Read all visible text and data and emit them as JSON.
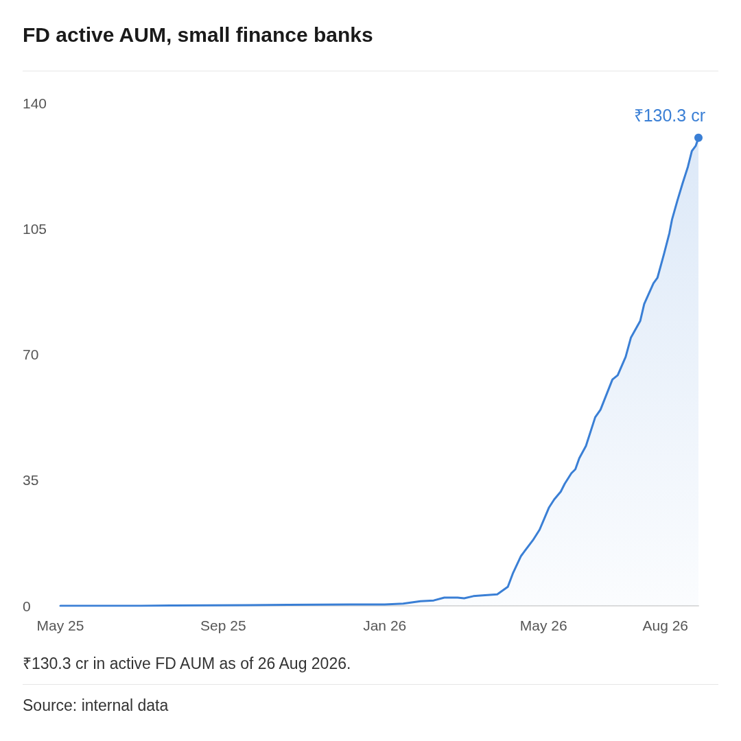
{
  "chart_data": {
    "type": "area",
    "title": "FD active AUM, small finance banks",
    "x": [
      "2025-05-01",
      "2025-07-01",
      "2025-07-23",
      "2025-09-20",
      "2025-10-20",
      "2026-01-01",
      "2026-01-15",
      "2026-01-28",
      "2026-02-07",
      "2026-02-15",
      "2026-02-25",
      "2026-03-02",
      "2026-03-09",
      "2026-03-16",
      "2026-03-27",
      "2026-04-04",
      "2026-04-08",
      "2026-04-14",
      "2026-04-23",
      "2026-04-28",
      "2026-05-05",
      "2026-05-09",
      "2026-05-14",
      "2026-05-17",
      "2026-05-22",
      "2026-05-25",
      "2026-05-28",
      "2026-06-02",
      "2026-06-09",
      "2026-06-13",
      "2026-06-22",
      "2026-06-26",
      "2026-07-02",
      "2026-07-06",
      "2026-07-13",
      "2026-07-16",
      "2026-07-23",
      "2026-07-26",
      "2026-07-31",
      "2026-08-04",
      "2026-08-06",
      "2026-08-10",
      "2026-08-14",
      "2026-08-18",
      "2026-08-21",
      "2026-08-24",
      "2026-08-26"
    ],
    "series": [
      {
        "color": "#3a7fd5",
        "values": [
          0,
          0,
          0.1,
          0.2,
          0.3,
          0.4,
          0.6,
          1.3,
          1.5,
          2.3,
          2.3,
          2.1,
          2.7,
          2.9,
          3.2,
          5.3,
          9.2,
          13.9,
          18.3,
          21.2,
          27.3,
          29.6,
          31.8,
          34,
          36.9,
          38,
          41.1,
          44.5,
          52.5,
          54.6,
          63,
          64.2,
          69.3,
          74.7,
          79.3,
          84,
          89.8,
          91.3,
          98,
          103.7,
          107.5,
          112.7,
          117.6,
          122.2,
          126.6,
          128.1,
          130.3
        ],
        "value_labels": [
          null,
          null,
          null,
          null,
          null,
          null,
          null,
          null,
          null,
          null,
          null,
          null,
          null,
          null,
          null,
          null,
          null,
          null,
          null,
          null,
          null,
          null,
          null,
          null,
          null,
          null,
          null,
          null,
          null,
          null,
          null,
          null,
          null,
          null,
          null,
          null,
          null,
          null,
          null,
          null,
          null,
          null,
          null,
          null,
          null,
          null,
          "₹130.3 cr"
        ]
      }
    ],
    "xlim": [
      "2025-05-01",
      "2026-08-26"
    ],
    "xticks": [
      {
        "value": "2025-05-01",
        "label": "May 25"
      },
      {
        "value": "2025-09-01",
        "label": "Sep 25"
      },
      {
        "value": "2026-01-01",
        "label": "Jan 26"
      },
      {
        "value": "2026-05-01",
        "label": "May 26"
      },
      {
        "value": "2026-08-01",
        "label": "Aug 26"
      }
    ],
    "ylim": [
      0,
      140
    ],
    "yticks": [
      0,
      35,
      70,
      105,
      140
    ],
    "marker": "none",
    "line_style": "solid",
    "grid": false,
    "annotations": [
      "₹130.3 cr in active FD AUM as of 26 Aug 2026.",
      "Source: internal data"
    ]
  }
}
